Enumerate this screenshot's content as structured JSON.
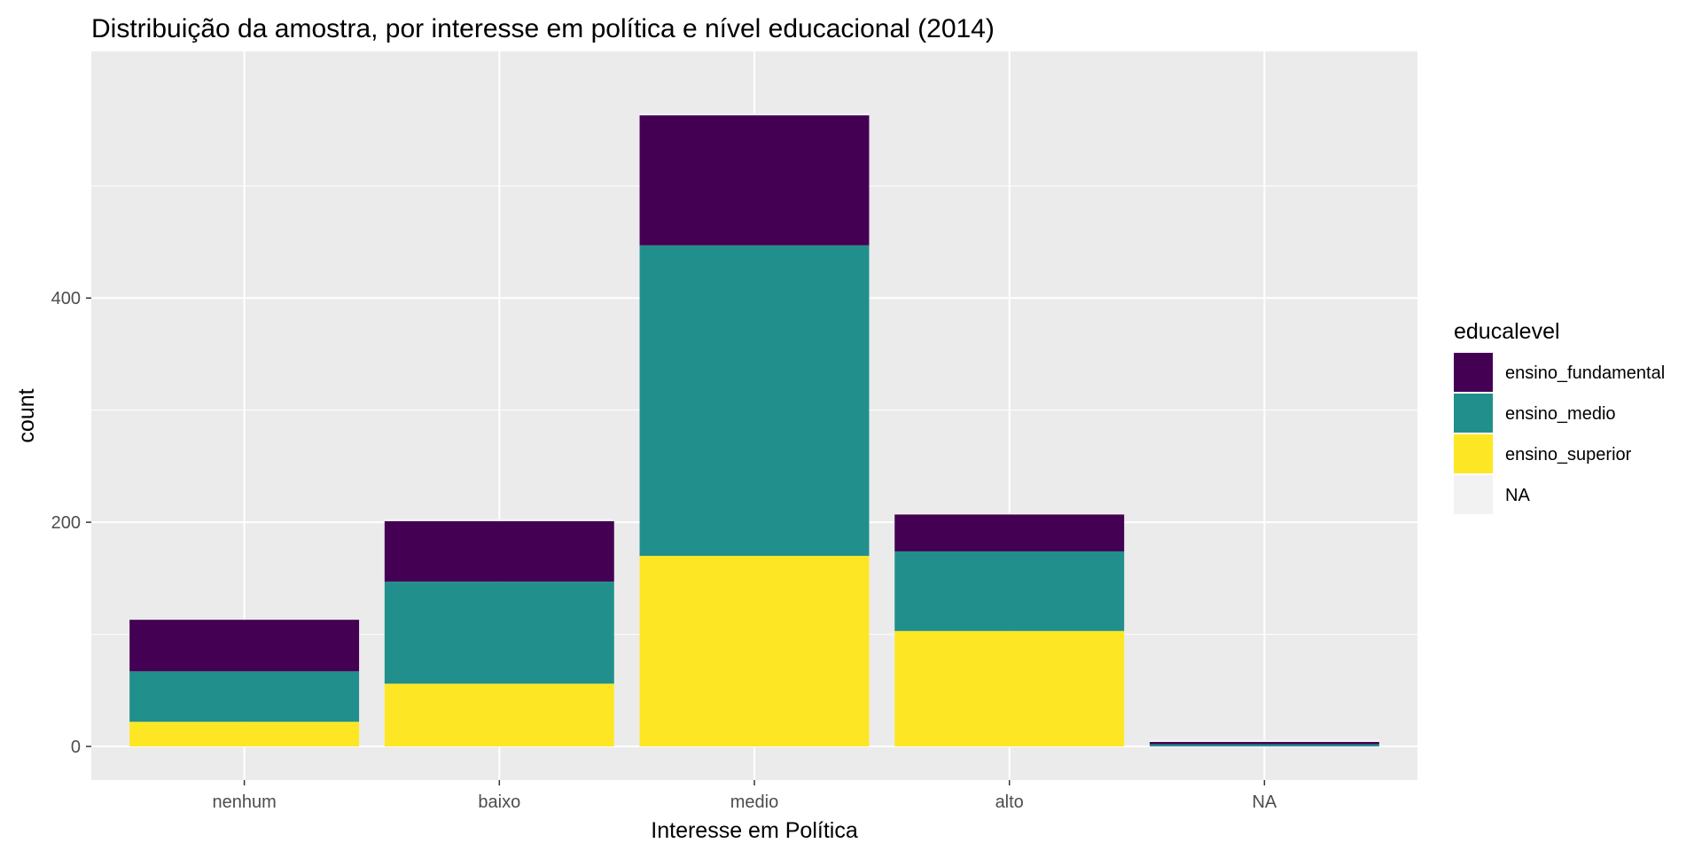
{
  "chart_data": {
    "type": "bar",
    "stacked": true,
    "title": "Distribuição da amostra, por interesse em política e nível educacional (2014)",
    "xlabel": "Interesse em Política",
    "ylabel": "count",
    "categories": [
      "nenhum",
      "baixo",
      "medio",
      "alto",
      "NA"
    ],
    "yticks": [
      0,
      200,
      400
    ],
    "ylim": [
      -30,
      620
    ],
    "grid": true,
    "legend": {
      "title": "educalevel",
      "position": "right",
      "entries": [
        {
          "label": "ensino_fundamental",
          "color": "#440154"
        },
        {
          "label": "ensino_medio",
          "color": "#21908C"
        },
        {
          "label": "ensino_superior",
          "color": "#FDE725"
        },
        {
          "label": "NA",
          "color": "#F2F2F2"
        }
      ]
    },
    "series": [
      {
        "name": "ensino_superior",
        "color": "#FDE725",
        "values": [
          22,
          56,
          170,
          103,
          0
        ]
      },
      {
        "name": "ensino_medio",
        "color": "#21908C",
        "values": [
          45,
          91,
          277,
          71,
          2
        ]
      },
      {
        "name": "ensino_fundamental",
        "color": "#440154",
        "values": [
          46,
          54,
          116,
          33,
          2
        ]
      },
      {
        "name": "NA",
        "color": "#F2F2F2",
        "values": [
          0,
          2,
          2,
          1,
          2
        ]
      }
    ]
  }
}
